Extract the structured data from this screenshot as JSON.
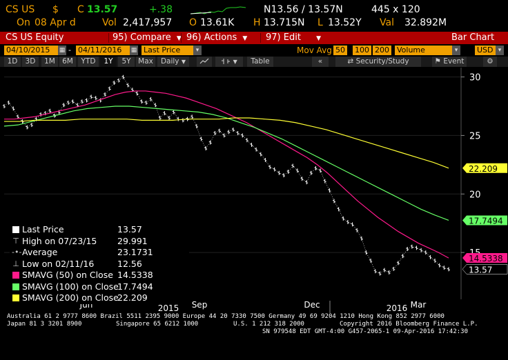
{
  "header": {
    "ticker": "CS US",
    "currency": "$",
    "c_label": "C",
    "price": "13.57",
    "change": "+.38",
    "bid_ask": "N13.56 / 13.57N",
    "size": "445 x 120",
    "on_label": "On",
    "date": "08 Apr d",
    "vol_label": "Vol",
    "volume": "2,417,957",
    "o_label": "O",
    "open": "13.61K",
    "h_label": "H",
    "high": "13.715N",
    "l_label": "L",
    "low": "13.52Y",
    "val_label": "Val",
    "value": "32.892M"
  },
  "toolbar": {
    "security": "CS US Equity",
    "compare_num": "95)",
    "compare": "Compare",
    "actions_num": "96)",
    "actions": "Actions",
    "edit_num": "97)",
    "edit": "Edit",
    "chart_type": "Bar Chart"
  },
  "settings": {
    "start_date": "04/10/2015",
    "end_date": "04/11/2016",
    "price_field": "Last Price",
    "mov_avg_label": "Mov Avg",
    "ma1": "50",
    "ma2": "100",
    "ma3": "200",
    "lower_field": "Volume",
    "currency": "USD"
  },
  "periods": {
    "items": [
      "1D",
      "3D",
      "1M",
      "6M",
      "YTD",
      "1Y",
      "5Y",
      "Max"
    ],
    "active": "1Y",
    "frequency": "Daily",
    "table": "Table",
    "security_study": "Security/Study",
    "event": "Event"
  },
  "chart_data": {
    "type": "line",
    "y_ticks": [
      "15",
      "20",
      "25",
      "30"
    ],
    "ylim": [
      11,
      30.8
    ],
    "x_ticks": [
      "Jun",
      "Sep",
      "Dec",
      "Mar"
    ],
    "year_labels": [
      "2015",
      "2016"
    ],
    "series": [
      {
        "name": "Last Price",
        "color": "#ffffff",
        "values": [
          27.5,
          27.8,
          27.3,
          26.6,
          26.2,
          25.7,
          25.9,
          26.4,
          26.8,
          26.9,
          27.1,
          26.7,
          27.0,
          27.6,
          27.8,
          27.9,
          27.6,
          27.9,
          28.0,
          28.3,
          28.2,
          28.0,
          28.5,
          29.0,
          29.5,
          29.7,
          29.99,
          29.3,
          28.9,
          28.6,
          27.9,
          27.8,
          28.1,
          27.6,
          26.5,
          26.9,
          26.5,
          27.0,
          26.4,
          26.3,
          26.4,
          26.6,
          25.8,
          24.7,
          23.9,
          24.4,
          25.2,
          25.4,
          25.0,
          25.3,
          25.5,
          25.2,
          25.0,
          24.6,
          24.2,
          23.8,
          23.4,
          22.9,
          22.3,
          22.1,
          21.8,
          21.6,
          21.9,
          22.4,
          22.0,
          21.3,
          21.0,
          21.8,
          22.2,
          22.0,
          21.1,
          20.3,
          19.4,
          18.7,
          17.9,
          17.6,
          17.4,
          16.9,
          16.2,
          15.0,
          14.3,
          13.4,
          13.2,
          13.5,
          13.3,
          13.6,
          14.1,
          14.7,
          15.3,
          15.5,
          15.4,
          15.2,
          15.0,
          14.6,
          14.3,
          13.9,
          13.7,
          13.57
        ]
      },
      {
        "name": "SMAVG (50) on Close",
        "color": "#ff1a8c",
        "values": [
          26.4,
          26.4,
          26.5,
          26.6,
          26.8,
          27.0,
          27.2,
          27.4,
          27.6,
          27.9,
          28.2,
          28.5,
          28.7,
          28.8,
          28.8,
          28.7,
          28.6,
          28.4,
          28.2,
          27.9,
          27.6,
          27.3,
          26.9,
          26.5,
          26.1,
          25.6,
          25.1,
          24.6,
          24.1,
          23.6,
          23.1,
          22.5,
          21.8,
          21.0,
          20.2,
          19.4,
          18.7,
          18.0,
          17.4,
          16.8,
          16.3,
          15.8,
          15.4,
          15.0,
          14.53
        ]
      },
      {
        "name": "SMAVG (100) on Close",
        "color": "#66ff66",
        "values": [
          25.8,
          25.9,
          26.2,
          26.5,
          26.8,
          27.1,
          27.3,
          27.4,
          27.5,
          27.5,
          27.4,
          27.3,
          27.2,
          27.1,
          27.0,
          26.8,
          26.5,
          26.1,
          25.7,
          25.2,
          24.7,
          24.1,
          23.5,
          22.9,
          22.3,
          21.7,
          21.1,
          20.5,
          19.9,
          19.3,
          18.7,
          18.2,
          17.75
        ]
      },
      {
        "name": "SMAVG (200) on Close",
        "color": "#ffff33",
        "values": [
          26.2,
          26.2,
          26.3,
          26.3,
          26.3,
          26.4,
          26.4,
          26.4,
          26.4,
          26.3,
          26.3,
          26.3,
          26.4,
          26.4,
          26.4,
          26.5,
          26.5,
          26.4,
          26.3,
          26.1,
          25.8,
          25.5,
          25.1,
          24.7,
          24.3,
          23.9,
          23.5,
          23.1,
          22.7,
          22.21
        ]
      }
    ],
    "right_labels": [
      {
        "text": "22.209",
        "bg": "#ffff33",
        "fg": "#000000",
        "value": 22.209
      },
      {
        "text": "17.7494",
        "bg": "#66ff66",
        "fg": "#000000",
        "value": 17.7494
      },
      {
        "text": "14.5338",
        "bg": "#ff1a8c",
        "fg": "#000000",
        "value": 14.5338
      },
      {
        "text": "13.57",
        "bg": "#000000",
        "fg": "#ffffff",
        "value": 13.57
      }
    ]
  },
  "legend": {
    "items": [
      {
        "icon": "square",
        "color": "#ffffff",
        "label": "Last Price",
        "value": "13.57"
      },
      {
        "icon": "high",
        "color": "",
        "label": "High on 07/23/15",
        "value": "29.991"
      },
      {
        "icon": "avg",
        "color": "",
        "label": "Average",
        "value": "23.1731"
      },
      {
        "icon": "low",
        "color": "",
        "label": "Low on 02/11/16",
        "value": "12.56"
      },
      {
        "icon": "square",
        "color": "#ff1a8c",
        "label": "SMAVG (50) on Close",
        "value": "14.5338"
      },
      {
        "icon": "square",
        "color": "#66ff66",
        "label": "SMAVG (100) on Close",
        "value": "17.7494"
      },
      {
        "icon": "square",
        "color": "#ffff33",
        "label": "SMAVG (200) on Close",
        "value": "22.209"
      }
    ]
  },
  "footer": {
    "line1": "Australia 61 2 9777 8600 Brazil 5511 2395 9000 Europe 44 20 7330 7500 Germany 49 69 9204 1210 Hong Kong 852 2977 6000",
    "line2a": "Japan 81 3 3201 8900",
    "line2b": "Singapore 65 6212 1000",
    "line2c": "U.S. 1 212 318 2000",
    "line2d": "Copyright 2016 Bloomberg Finance L.P.",
    "line3": "SN 979548 EDT  GMT-4:00 G457-2065-1 09-Apr-2016 17:42:30"
  }
}
